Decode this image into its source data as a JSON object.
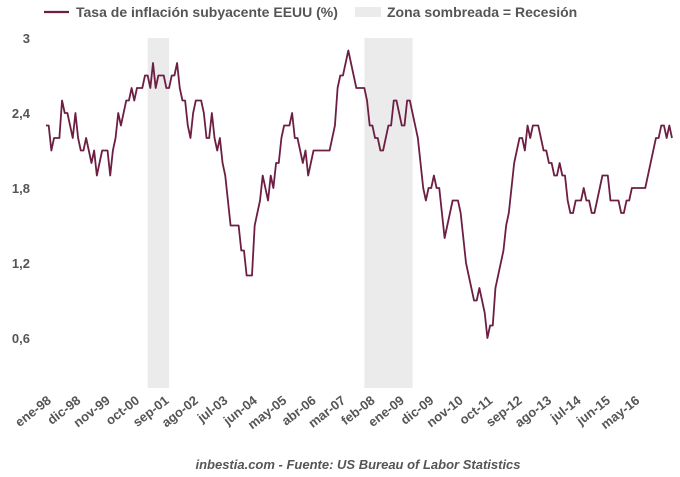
{
  "chart_data": {
    "type": "line",
    "title": "",
    "xlabel": "",
    "ylabel": "",
    "ylim": [
      0.2,
      3.0
    ],
    "yticks": [
      "3",
      "2,4",
      "1,8",
      "1,2",
      "0,6"
    ],
    "ytick_values": [
      3.0,
      2.4,
      1.8,
      1.2,
      0.6
    ],
    "x_start": "1998-01",
    "xticks": [
      {
        "label": "ene-98",
        "month_index": 0
      },
      {
        "label": "dic-98",
        "month_index": 11
      },
      {
        "label": "nov-99",
        "month_index": 22
      },
      {
        "label": "oct-00",
        "month_index": 33
      },
      {
        "label": "sep-01",
        "month_index": 44
      },
      {
        "label": "ago-02",
        "month_index": 55
      },
      {
        "label": "jul-03",
        "month_index": 66
      },
      {
        "label": "jun-04",
        "month_index": 77
      },
      {
        "label": "may-05",
        "month_index": 88
      },
      {
        "label": "abr-06",
        "month_index": 99
      },
      {
        "label": "mar-07",
        "month_index": 110
      },
      {
        "label": "feb-08",
        "month_index": 121
      },
      {
        "label": "ene-09",
        "month_index": 132
      },
      {
        "label": "dic-09",
        "month_index": 143
      },
      {
        "label": "nov-10",
        "month_index": 154
      },
      {
        "label": "oct-11",
        "month_index": 165
      },
      {
        "label": "sep-12",
        "month_index": 176
      },
      {
        "label": "ago-13",
        "month_index": 187
      },
      {
        "label": "jul-14",
        "month_index": 198
      },
      {
        "label": "jun-15",
        "month_index": 209
      },
      {
        "label": "may-16",
        "month_index": 220
      }
    ],
    "recessions": [
      {
        "from": "2001-03",
        "to": "2001-11"
      },
      {
        "from": "2007-12",
        "to": "2009-06"
      }
    ],
    "series": [
      {
        "name": "Tasa de inflación subyacente EEUU (%)",
        "color": "#6d1f43",
        "values": [
          2.3,
          2.3,
          2.1,
          2.2,
          2.2,
          2.2,
          2.5,
          2.4,
          2.4,
          2.3,
          2.2,
          2.4,
          2.2,
          2.1,
          2.1,
          2.2,
          2.1,
          2.0,
          2.1,
          1.9,
          2.0,
          2.1,
          2.1,
          2.1,
          1.9,
          2.1,
          2.2,
          2.4,
          2.3,
          2.4,
          2.5,
          2.5,
          2.6,
          2.5,
          2.6,
          2.6,
          2.6,
          2.7,
          2.7,
          2.6,
          2.8,
          2.6,
          2.7,
          2.7,
          2.7,
          2.6,
          2.6,
          2.7,
          2.7,
          2.8,
          2.6,
          2.5,
          2.5,
          2.3,
          2.2,
          2.4,
          2.5,
          2.5,
          2.5,
          2.4,
          2.2,
          2.2,
          2.4,
          2.2,
          2.1,
          2.2,
          2.0,
          1.9,
          1.7,
          1.5,
          1.5,
          1.5,
          1.5,
          1.3,
          1.3,
          1.1,
          1.1,
          1.1,
          1.5,
          1.6,
          1.7,
          1.9,
          1.8,
          1.7,
          1.9,
          1.8,
          2.0,
          2.0,
          2.2,
          2.3,
          2.3,
          2.3,
          2.4,
          2.2,
          2.2,
          2.1,
          2.0,
          2.1,
          1.9,
          2.0,
          2.1,
          2.1,
          2.1,
          2.1,
          2.1,
          2.1,
          2.1,
          2.2,
          2.3,
          2.6,
          2.7,
          2.7,
          2.8,
          2.9,
          2.8,
          2.7,
          2.6,
          2.6,
          2.6,
          2.6,
          2.5,
          2.3,
          2.3,
          2.2,
          2.2,
          2.1,
          2.1,
          2.2,
          2.3,
          2.3,
          2.5,
          2.5,
          2.4,
          2.3,
          2.3,
          2.5,
          2.5,
          2.4,
          2.3,
          2.2,
          2.0,
          1.8,
          1.7,
          1.8,
          1.8,
          1.9,
          1.8,
          1.8,
          1.6,
          1.4,
          1.5,
          1.6,
          1.7,
          1.7,
          1.7,
          1.6,
          1.4,
          1.2,
          1.1,
          1.0,
          0.9,
          0.9,
          1.0,
          0.9,
          0.8,
          0.6,
          0.7,
          0.7,
          1.0,
          1.1,
          1.2,
          1.3,
          1.5,
          1.6,
          1.8,
          2.0,
          2.1,
          2.2,
          2.2,
          2.1,
          2.3,
          2.2,
          2.3,
          2.3,
          2.3,
          2.2,
          2.1,
          2.1,
          2.0,
          2.0,
          1.9,
          1.9,
          2.0,
          1.9,
          1.9,
          1.7,
          1.6,
          1.6,
          1.7,
          1.7,
          1.7,
          1.8,
          1.7,
          1.7,
          1.6,
          1.6,
          1.7,
          1.8,
          1.9,
          1.9,
          1.9,
          1.7,
          1.7,
          1.7,
          1.7,
          1.6,
          1.6,
          1.7,
          1.7,
          1.8,
          1.8,
          1.8,
          1.8,
          1.8,
          1.8,
          1.9,
          2.0,
          2.1,
          2.2,
          2.2,
          2.3,
          2.3,
          2.2,
          2.3,
          2.2
        ]
      }
    ],
    "legend": [
      {
        "label": "Tasa de inflación subyacente EEUU (%)",
        "kind": "line",
        "color": "#6d1f43"
      },
      {
        "label": "Zona sombreada = Recesión",
        "kind": "area",
        "color": "#ebebeb"
      }
    ],
    "legend_position": "top",
    "grid": false
  },
  "footer": {
    "source": "inbestia.com - Fuente: US Bureau of Labor Statistics"
  }
}
